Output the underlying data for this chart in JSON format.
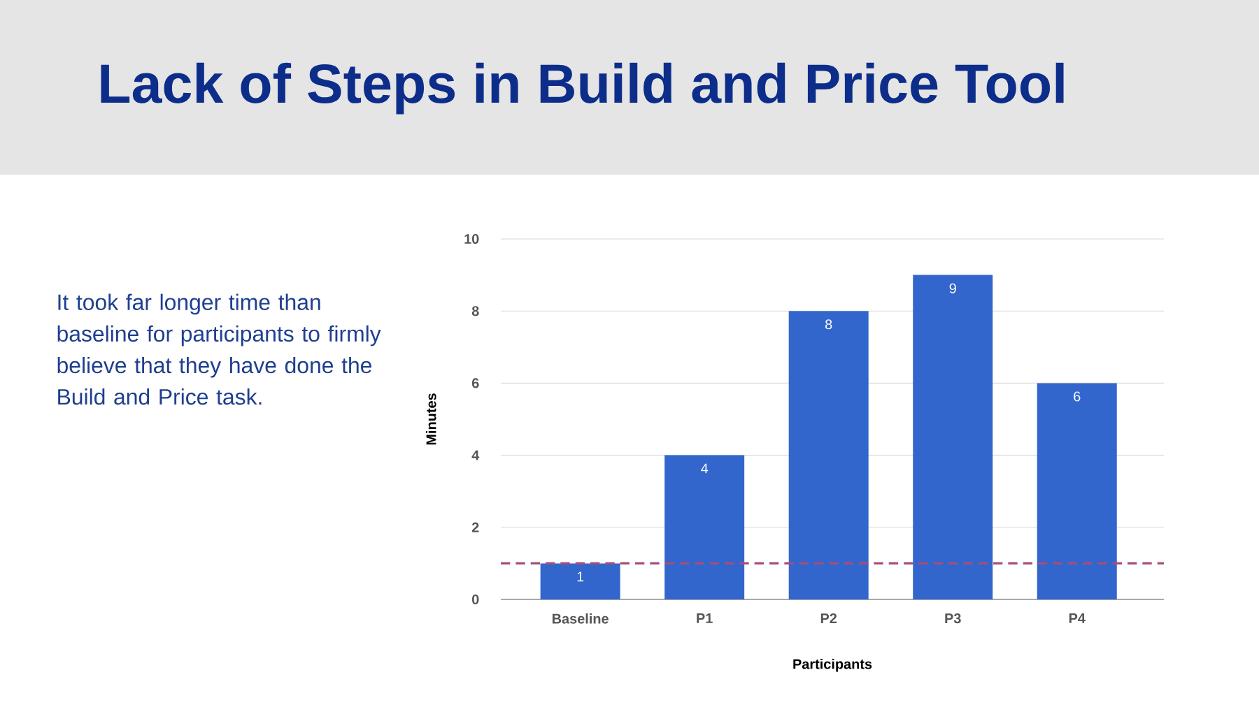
{
  "chart_data": {
    "type": "bar",
    "title": "Lack of Steps in Build and Price Tool",
    "annotations": [
      "It took far longer time than baseline for participants to firmly believe that they have done the Build and Price task."
    ],
    "xlabel": "Participants",
    "ylabel": "Minutes",
    "categories": [
      "Baseline",
      "P1",
      "P2",
      "P3",
      "P4"
    ],
    "values": [
      1,
      4,
      8,
      9,
      6
    ],
    "color": "#3366cc",
    "ylim": [
      0,
      10
    ],
    "yticks": [
      0,
      2,
      4,
      6,
      8,
      10
    ],
    "grid": "y",
    "data_labels": true,
    "ref_lines": [
      {
        "axis": "y",
        "value": 1,
        "color": "#a64d79",
        "line_style": "dashed"
      }
    ]
  }
}
